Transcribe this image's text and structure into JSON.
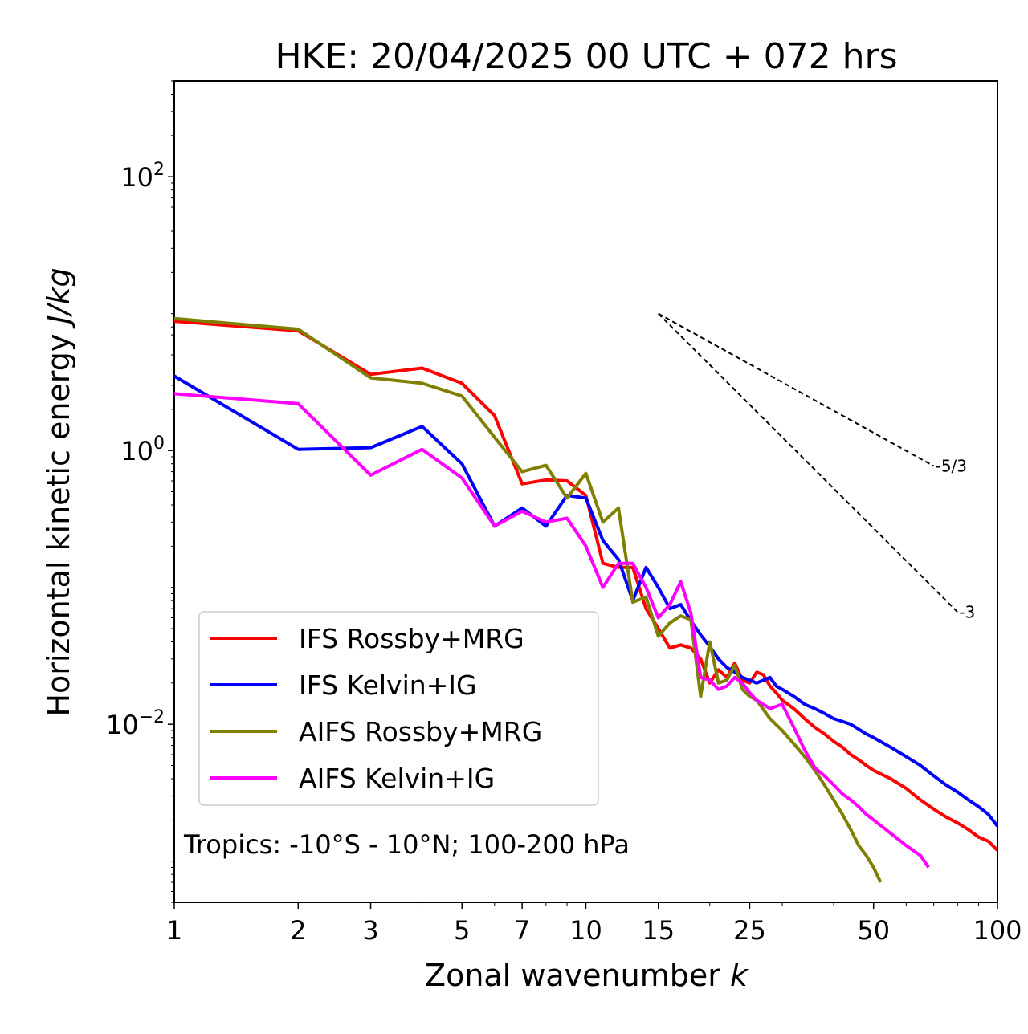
{
  "chart_data": {
    "type": "line",
    "title": "HKE: 20/04/2025 00 UTC + 072 hrs",
    "xlabel": "Zonal wavenumber",
    "xlabel_var": "k",
    "ylabel": "Horizontal kinetic energy",
    "ylabel_unit": "J/kg",
    "xscale": "log",
    "yscale": "log",
    "xlim": [
      1,
      100
    ],
    "ylim": [
      0.0005,
      500
    ],
    "x_ticks": [
      1,
      2,
      3,
      5,
      7,
      10,
      15,
      25,
      50,
      100
    ],
    "x_tick_labels": [
      "1",
      "2",
      "3",
      "5",
      "7",
      "10",
      "15",
      "25",
      "50",
      "100"
    ],
    "y_ticks": [
      0.01,
      1,
      100
    ],
    "y_tick_labels": [
      {
        "base": "10",
        "exp": "−2"
      },
      {
        "base": "10",
        "exp": "0"
      },
      {
        "base": "10",
        "exp": "2"
      }
    ],
    "grid": false,
    "legend_position": "lower-left",
    "annotation": "Tropics: -10°S - 10°N; 100-200 hPa",
    "reference_slopes": [
      {
        "label": "-5/3",
        "x_start": 15,
        "y_start": 10,
        "x_end": 70,
        "y_end": 0.77
      },
      {
        "label": "-3",
        "x_start": 15,
        "y_start": 10,
        "x_end": 80,
        "y_end": 0.066
      }
    ],
    "series": [
      {
        "name": "IFS Rossby+MRG",
        "color": "#ff0000",
        "points": [
          [
            1,
            8.8
          ],
          [
            2,
            7.5
          ],
          [
            3,
            3.6
          ],
          [
            4,
            4.0
          ],
          [
            5,
            3.1
          ],
          [
            6,
            1.8
          ],
          [
            7,
            0.57
          ],
          [
            8,
            0.61
          ],
          [
            9,
            0.6
          ],
          [
            10,
            0.47
          ],
          [
            11,
            0.15
          ],
          [
            12,
            0.14
          ],
          [
            13,
            0.14
          ],
          [
            14,
            0.07
          ],
          [
            15,
            0.05
          ],
          [
            16,
            0.036
          ],
          [
            17,
            0.038
          ],
          [
            18,
            0.036
          ],
          [
            19,
            0.03
          ],
          [
            20,
            0.02
          ],
          [
            21,
            0.025
          ],
          [
            22,
            0.022
          ],
          [
            23,
            0.028
          ],
          [
            24,
            0.021
          ],
          [
            25,
            0.02
          ],
          [
            26,
            0.024
          ],
          [
            27,
            0.023
          ],
          [
            28,
            0.019
          ],
          [
            29,
            0.017
          ],
          [
            30,
            0.015
          ],
          [
            32,
            0.013
          ],
          [
            34,
            0.011
          ],
          [
            36,
            0.0095
          ],
          [
            38,
            0.0085
          ],
          [
            40,
            0.0075
          ],
          [
            42,
            0.0068
          ],
          [
            44,
            0.006
          ],
          [
            46,
            0.0055
          ],
          [
            48,
            0.005
          ],
          [
            50,
            0.0046
          ],
          [
            55,
            0.004
          ],
          [
            60,
            0.0034
          ],
          [
            65,
            0.0028
          ],
          [
            70,
            0.0024
          ],
          [
            75,
            0.0021
          ],
          [
            80,
            0.0019
          ],
          [
            85,
            0.0017
          ],
          [
            90,
            0.0015
          ],
          [
            95,
            0.0014
          ],
          [
            100,
            0.0012
          ]
        ]
      },
      {
        "name": "IFS Kelvin+IG",
        "color": "#0000ff",
        "points": [
          [
            1,
            3.5
          ],
          [
            2,
            1.02
          ],
          [
            3,
            1.05
          ],
          [
            4,
            1.5
          ],
          [
            5,
            0.8
          ],
          [
            6,
            0.28
          ],
          [
            7,
            0.38
          ],
          [
            8,
            0.28
          ],
          [
            9,
            0.47
          ],
          [
            10,
            0.45
          ],
          [
            11,
            0.22
          ],
          [
            12,
            0.16
          ],
          [
            13,
            0.08
          ],
          [
            14,
            0.14
          ],
          [
            15,
            0.1
          ],
          [
            16,
            0.07
          ],
          [
            17,
            0.075
          ],
          [
            18,
            0.057
          ],
          [
            19,
            0.045
          ],
          [
            20,
            0.037
          ],
          [
            21,
            0.03
          ],
          [
            22,
            0.026
          ],
          [
            23,
            0.024
          ],
          [
            24,
            0.022
          ],
          [
            25,
            0.021
          ],
          [
            26,
            0.02
          ],
          [
            27,
            0.021
          ],
          [
            28,
            0.022
          ],
          [
            29,
            0.019
          ],
          [
            30,
            0.018
          ],
          [
            32,
            0.016
          ],
          [
            34,
            0.014
          ],
          [
            36,
            0.013
          ],
          [
            38,
            0.012
          ],
          [
            40,
            0.011
          ],
          [
            42,
            0.0105
          ],
          [
            44,
            0.01
          ],
          [
            46,
            0.0092
          ],
          [
            48,
            0.0085
          ],
          [
            50,
            0.008
          ],
          [
            55,
            0.0068
          ],
          [
            60,
            0.0058
          ],
          [
            65,
            0.005
          ],
          [
            70,
            0.0042
          ],
          [
            75,
            0.0036
          ],
          [
            80,
            0.0032
          ],
          [
            85,
            0.0028
          ],
          [
            90,
            0.0025
          ],
          [
            95,
            0.0022
          ],
          [
            100,
            0.0018
          ]
        ]
      },
      {
        "name": "AIFS Rossby+MRG",
        "color": "#808000",
        "points": [
          [
            1,
            9.2
          ],
          [
            2,
            7.7
          ],
          [
            3,
            3.4
          ],
          [
            4,
            3.1
          ],
          [
            5,
            2.5
          ],
          [
            6,
            1.25
          ],
          [
            7,
            0.7
          ],
          [
            8,
            0.78
          ],
          [
            9,
            0.45
          ],
          [
            10,
            0.68
          ],
          [
            11,
            0.3
          ],
          [
            12,
            0.38
          ],
          [
            13,
            0.078
          ],
          [
            14,
            0.085
          ],
          [
            15,
            0.044
          ],
          [
            16,
            0.055
          ],
          [
            17,
            0.062
          ],
          [
            18,
            0.058
          ],
          [
            19,
            0.016
          ],
          [
            20,
            0.04
          ],
          [
            21,
            0.02
          ],
          [
            22,
            0.021
          ],
          [
            23,
            0.027
          ],
          [
            24,
            0.018
          ],
          [
            25,
            0.016
          ],
          [
            26,
            0.015
          ],
          [
            28,
            0.011
          ],
          [
            30,
            0.009
          ],
          [
            32,
            0.0072
          ],
          [
            34,
            0.0058
          ],
          [
            36,
            0.0046
          ],
          [
            38,
            0.0036
          ],
          [
            40,
            0.0028
          ],
          [
            42,
            0.0022
          ],
          [
            44,
            0.0017
          ],
          [
            46,
            0.0013
          ],
          [
            48,
            0.0011
          ],
          [
            50,
            0.0009
          ],
          [
            52,
            0.0007
          ]
        ]
      },
      {
        "name": "AIFS Kelvin+IG",
        "color": "#ff00ff",
        "points": [
          [
            1,
            2.6
          ],
          [
            2,
            2.2
          ],
          [
            3,
            0.66
          ],
          [
            4,
            1.02
          ],
          [
            5,
            0.63
          ],
          [
            6,
            0.28
          ],
          [
            7,
            0.36
          ],
          [
            8,
            0.3
          ],
          [
            9,
            0.32
          ],
          [
            10,
            0.2
          ],
          [
            11,
            0.1
          ],
          [
            12,
            0.15
          ],
          [
            13,
            0.15
          ],
          [
            14,
            0.1
          ],
          [
            15,
            0.06
          ],
          [
            16,
            0.075
          ],
          [
            17,
            0.11
          ],
          [
            18,
            0.065
          ],
          [
            19,
            0.022
          ],
          [
            20,
            0.021
          ],
          [
            21,
            0.018
          ],
          [
            22,
            0.019
          ],
          [
            23,
            0.022
          ],
          [
            24,
            0.02
          ],
          [
            25,
            0.017
          ],
          [
            26,
            0.015
          ],
          [
            28,
            0.013
          ],
          [
            30,
            0.014
          ],
          [
            32,
            0.0095
          ],
          [
            34,
            0.0065
          ],
          [
            36,
            0.0048
          ],
          [
            38,
            0.0042
          ],
          [
            40,
            0.0036
          ],
          [
            42,
            0.0031
          ],
          [
            44,
            0.0028
          ],
          [
            46,
            0.0025
          ],
          [
            48,
            0.0022
          ],
          [
            50,
            0.002
          ],
          [
            55,
            0.0016
          ],
          [
            60,
            0.0013
          ],
          [
            65,
            0.0011
          ],
          [
            68,
            0.0009
          ]
        ]
      }
    ]
  }
}
